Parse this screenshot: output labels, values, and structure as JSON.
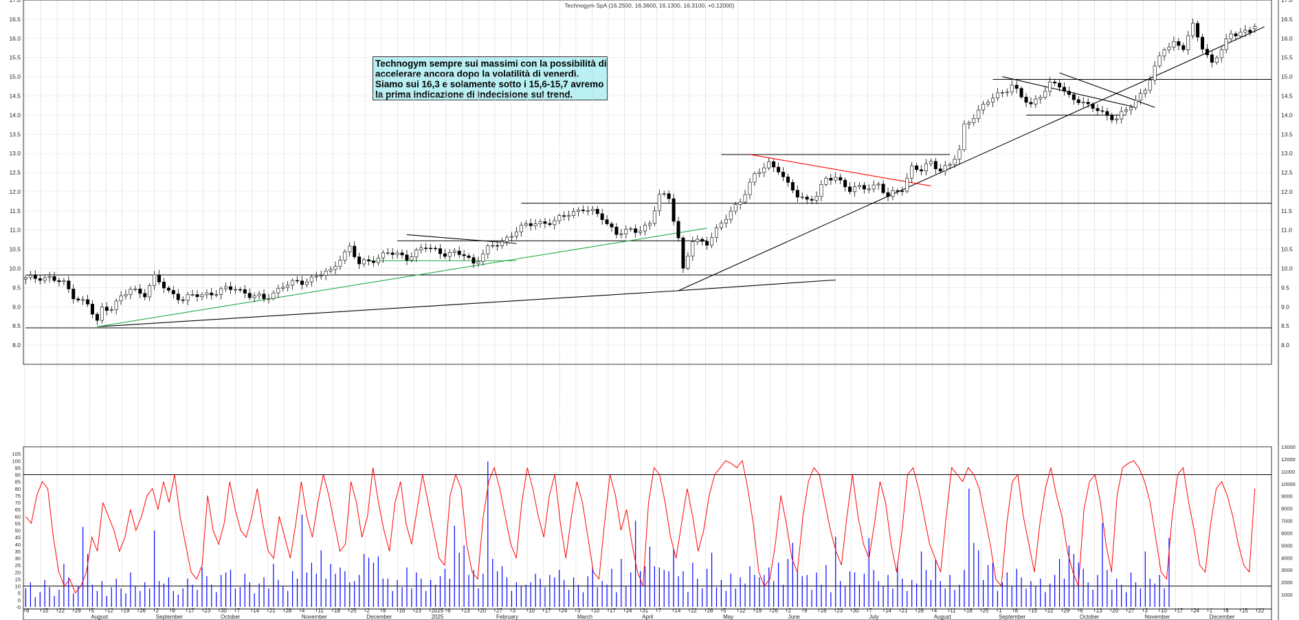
{
  "title": "Technogym SpA (16.2500, 16.3600, 16.1300, 16.3100, +0.12000)",
  "annotation": [
    "Technogym sempre sui massimi con la possibilità di",
    "accelerare ancora dopo la volatilità di venerdì.",
    "Siamo sui 16,3 e solamente sotto i 15,6-15,7 avremo",
    "la prima indicazione di indecisione sul trend."
  ],
  "colors": {
    "candle": "#000000",
    "trend_green": "#22aa44",
    "trend_red": "#ff0000",
    "stoch": "#ff0000",
    "volume": "#0000ff",
    "grid": "#b0b0b0"
  },
  "x_ticks": [
    "8",
    "15",
    "22",
    "29",
    "5",
    "12",
    "19",
    "26",
    "2",
    "9",
    "17",
    "23",
    "30",
    "7",
    "14",
    "21",
    "28",
    "4",
    "11",
    "18",
    "25",
    "2",
    "9",
    "16",
    "23",
    "2025",
    "6",
    "13",
    "20",
    "27",
    "3",
    "10",
    "17",
    "24",
    "3",
    "10",
    "17",
    "24",
    "31",
    "7",
    "14",
    "22",
    "28",
    "5",
    "12",
    "19",
    "26",
    "2",
    "9",
    "16",
    "23",
    "30",
    "7",
    "14",
    "21",
    "28",
    "4",
    "11",
    "18",
    "25",
    "1",
    "8",
    "15",
    "22",
    "29",
    "6",
    "13",
    "20",
    "27",
    "3",
    "10",
    "17",
    "24",
    "1",
    "8",
    "15",
    "22"
  ],
  "month_labels": [
    "August",
    "September",
    "October",
    "November",
    "December",
    "2025",
    "February",
    "March",
    "April",
    "May",
    "June",
    "July",
    "August",
    "September",
    "October",
    "November",
    "December"
  ],
  "chart_data": [
    {
      "type": "candlestick",
      "title": "Technogym SpA (16.2500, 16.3600, 16.1300, 16.3100, +0.12000)",
      "last": {
        "open": 16.25,
        "high": 16.36,
        "low": 16.13,
        "close": 16.31,
        "change": 0.12
      },
      "ylim": [
        7.5,
        17.0
      ],
      "y_ticks": [
        8.0,
        8.5,
        9.0,
        9.5,
        10.0,
        10.5,
        11.0,
        11.5,
        12.0,
        12.5,
        13.0,
        13.5,
        14.0,
        14.5,
        15.0,
        15.5,
        16.0,
        16.5,
        17.0
      ],
      "grid": true,
      "close_path": [
        [
          0,
          9.72
        ],
        [
          3,
          9.78
        ],
        [
          5,
          9.75
        ],
        [
          8,
          9.6
        ],
        [
          10,
          9.3
        ],
        [
          13,
          9.05
        ],
        [
          15,
          8.6
        ],
        [
          16,
          8.95
        ],
        [
          18,
          9.0
        ],
        [
          22,
          9.45
        ],
        [
          25,
          9.35
        ],
        [
          27,
          9.75
        ],
        [
          30,
          9.4
        ],
        [
          33,
          9.2
        ],
        [
          36,
          9.3
        ],
        [
          40,
          9.38
        ],
        [
          44,
          9.5
        ],
        [
          47,
          9.3
        ],
        [
          50,
          9.2
        ],
        [
          54,
          9.55
        ],
        [
          58,
          9.65
        ],
        [
          62,
          9.85
        ],
        [
          64,
          9.9
        ],
        [
          66,
          10.3
        ],
        [
          68,
          10.55
        ],
        [
          70,
          10.1
        ],
        [
          72,
          10.2
        ],
        [
          76,
          10.4
        ],
        [
          80,
          10.3
        ],
        [
          84,
          10.55
        ],
        [
          88,
          10.4
        ],
        [
          92,
          10.35
        ],
        [
          94,
          10.15
        ],
        [
          97,
          10.5
        ],
        [
          100,
          10.7
        ],
        [
          103,
          11.0
        ],
        [
          107,
          11.2
        ],
        [
          111,
          11.2
        ],
        [
          114,
          11.45
        ],
        [
          117,
          11.55
        ],
        [
          121,
          11.35
        ],
        [
          124,
          10.9
        ],
        [
          128,
          11.0
        ],
        [
          131,
          11.15
        ],
        [
          133,
          11.9
        ],
        [
          135,
          11.85
        ],
        [
          137,
          10.8
        ],
        [
          138,
          9.95
        ],
        [
          140,
          10.7
        ],
        [
          143,
          10.7
        ],
        [
          147,
          11.3
        ],
        [
          150,
          11.8
        ],
        [
          153,
          12.4
        ],
        [
          156,
          12.75
        ],
        [
          158,
          12.6
        ],
        [
          160,
          12.15
        ],
        [
          162,
          11.9
        ],
        [
          164,
          11.8
        ],
        [
          166,
          11.9
        ],
        [
          168,
          12.3
        ],
        [
          170,
          12.4
        ],
        [
          173,
          12.05
        ],
        [
          176,
          12.1
        ],
        [
          179,
          12.2
        ],
        [
          181,
          11.85
        ],
        [
          184,
          12.1
        ],
        [
          186,
          12.65
        ],
        [
          188,
          12.55
        ],
        [
          190,
          12.75
        ],
        [
          192,
          12.6
        ],
        [
          194,
          12.7
        ],
        [
          196,
          13.05
        ],
        [
          197,
          13.7
        ],
        [
          199,
          14.0
        ],
        [
          202,
          14.35
        ],
        [
          205,
          14.6
        ],
        [
          207,
          14.8
        ],
        [
          209,
          14.45
        ],
        [
          211,
          14.25
        ],
        [
          213,
          14.55
        ],
        [
          215,
          14.8
        ],
        [
          217,
          14.75
        ],
        [
          219,
          14.5
        ],
        [
          221,
          14.4
        ],
        [
          223,
          14.2
        ],
        [
          225,
          14.15
        ],
        [
          227,
          14.0
        ],
        [
          229,
          13.9
        ],
        [
          231,
          14.1
        ],
        [
          233,
          14.4
        ],
        [
          235,
          14.7
        ],
        [
          237,
          15.2
        ],
        [
          239,
          15.75
        ],
        [
          241,
          15.9
        ],
        [
          243,
          15.75
        ],
        [
          245,
          16.3
        ],
        [
          247,
          15.8
        ],
        [
          249,
          15.35
        ],
        [
          251,
          15.7
        ],
        [
          253,
          16.1
        ],
        [
          255,
          16.2
        ],
        [
          257,
          16.15
        ],
        [
          258,
          16.31
        ]
      ],
      "horizontal_levels": [
        {
          "y": 9.83,
          "x_from": 0,
          "x_to": 260
        },
        {
          "y": 8.45,
          "x_from": 0,
          "x_to": 260
        },
        {
          "y": 11.7,
          "x_from": 104,
          "x_to": 260
        },
        {
          "y": 10.72,
          "x_from": 78,
          "x_to": 143
        },
        {
          "y": 12.97,
          "x_from": 146,
          "x_to": 194
        },
        {
          "y": 14.93,
          "x_from": 203,
          "x_to": 260
        },
        {
          "y": 14.0,
          "x_from": 210,
          "x_to": 231
        }
      ],
      "trendlines": [
        {
          "color": "black",
          "from": [
            15,
            8.48
          ],
          "to": [
            137,
            9.42
          ]
        },
        {
          "color": "black",
          "from": [
            137,
            9.42
          ],
          "to": [
            170,
            9.7
          ]
        },
        {
          "color": "black",
          "from": [
            137,
            9.42
          ],
          "to": [
            260,
            16.3
          ]
        },
        {
          "color": "green",
          "from": [
            15,
            8.48
          ],
          "to": [
            143,
            11.05
          ]
        },
        {
          "color": "green",
          "from": [
            72,
            10.2
          ],
          "to": [
            103,
            10.2
          ]
        },
        {
          "color": "black",
          "from": [
            80,
            10.88
          ],
          "to": [
            103,
            10.65
          ]
        },
        {
          "color": "red",
          "from": [
            152,
            12.97
          ],
          "to": [
            190,
            12.15
          ]
        },
        {
          "color": "black",
          "from": [
            205,
            15.0
          ],
          "to": [
            233,
            14.2
          ]
        },
        {
          "color": "black",
          "from": [
            217,
            15.1
          ],
          "to": [
            237,
            14.2
          ]
        }
      ]
    },
    {
      "type": "line",
      "name": "stochastic",
      "ylim": [
        -5,
        110
      ],
      "y_ticks": [
        -5,
        0,
        5,
        10,
        15,
        20,
        25,
        30,
        35,
        40,
        45,
        50,
        55,
        60,
        65,
        70,
        75,
        80,
        85,
        90,
        95,
        100,
        105
      ],
      "levels": [
        90,
        10
      ],
      "series": [
        {
          "values": [
            60,
            55,
            75,
            85,
            80,
            45,
            20,
            10,
            15,
            5,
            10,
            20,
            45,
            35,
            70,
            60,
            50,
            35,
            45,
            65,
            50,
            60,
            75,
            80,
            65,
            85,
            70,
            90,
            60,
            40,
            20,
            15,
            25,
            75,
            50,
            40,
            55,
            85,
            65,
            50,
            45,
            60,
            80,
            55,
            35,
            30,
            60,
            45,
            30,
            55,
            85,
            60,
            45,
            70,
            90,
            75,
            55,
            35,
            40,
            85,
            70,
            45,
            60,
            95,
            70,
            50,
            35,
            70,
            85,
            55,
            40,
            65,
            90,
            70,
            50,
            30,
            25,
            75,
            90,
            80,
            40,
            20,
            15,
            60,
            85,
            95,
            80,
            60,
            40,
            30,
            70,
            95,
            80,
            60,
            45,
            75,
            90,
            55,
            30,
            60,
            85,
            70,
            45,
            20,
            15,
            55,
            90,
            75,
            50,
            65,
            40,
            20,
            10,
            70,
            95,
            90,
            70,
            45,
            30,
            55,
            80,
            60,
            35,
            50,
            75,
            90,
            95,
            100,
            98,
            95,
            100,
            80,
            55,
            20,
            10,
            15,
            40,
            75,
            55,
            30,
            20,
            60,
            85,
            95,
            90,
            70,
            50,
            35,
            25,
            60,
            90,
            60,
            40,
            30,
            55,
            85,
            70,
            40,
            20,
            50,
            90,
            95,
            80,
            60,
            40,
            30,
            20,
            60,
            95,
            90,
            85,
            95,
            90,
            80,
            60,
            40,
            15,
            10,
            55,
            85,
            90,
            60,
            40,
            20,
            55,
            80,
            95,
            75,
            60,
            35,
            20,
            10,
            65,
            85,
            90,
            70,
            40,
            20,
            75,
            95,
            98,
            100,
            95,
            85,
            70,
            45,
            20,
            15,
            60,
            90,
            95,
            70,
            50,
            25,
            20,
            55,
            80,
            85,
            75,
            60,
            40,
            25,
            20,
            80
          ]
        }
      ]
    },
    {
      "type": "bar",
      "name": "volume",
      "ylim": [
        0,
        13000
      ],
      "y_ticks": [
        1000,
        2000,
        3000,
        4000,
        5000,
        6000,
        7000,
        8000,
        9000,
        10000,
        11000,
        12000,
        13000
      ],
      "values": [
        1500,
        2000,
        800,
        1200,
        2200,
        1600,
        900,
        1400,
        3500,
        2400,
        1100,
        1700,
        6500,
        4300,
        1800,
        1300,
        2100,
        900,
        1600,
        2300,
        1500,
        1100,
        2800,
        1700,
        1300,
        2000,
        1500,
        6200,
        2100,
        1900,
        2400,
        1300,
        1000,
        1500,
        2300,
        1800,
        1400,
        3200,
        2500,
        1800,
        1200,
        2600,
        2800,
        3000,
        1500,
        1600,
        2700,
        2000,
        1100,
        1900,
        2400,
        1500,
        3500,
        2200,
        1700,
        1300,
        2900,
        2300,
        7500,
        2800,
        3600,
        2700,
        4600,
        2300,
        3500,
        2700,
        3200,
        2900,
        2000,
        2100,
        2600,
        4300,
        4000,
        3600,
        4100,
        2300,
        2300,
        1300,
        2200,
        1600,
        3200,
        1500,
        2800,
        2300,
        1300,
        2200,
        1800,
        2500,
        3100,
        2300,
        6600,
        4400,
        5000,
        2600,
        3000,
        1500,
        2700,
        11800,
        3900,
        2900,
        3300,
        2400,
        1300,
        2000,
        1700,
        1800,
        2000,
        2700,
        2300,
        1600,
        2600,
        2400,
        3000,
        2200,
        1400,
        2400,
        1800,
        1200,
        2500,
        3200,
        1600,
        2100,
        1800,
        3100,
        1200,
        3900,
        1700,
        2800,
        7000,
        2900,
        3300,
        4900,
        3300,
        3200,
        3000,
        2900,
        4700,
        2500,
        2900,
        1200,
        3600,
        2300,
        1500,
        3100,
        4400,
        1600,
        2200,
        1300,
        2700,
        1500,
        2400,
        1900,
        3300,
        2600,
        2400,
        2600,
        3200,
        2100,
        3600,
        1800,
        3900,
        5200,
        2900,
        2500,
        2600,
        1400,
        2800,
        1800,
        3400,
        1200,
        5700,
        2100,
        1700,
        2900,
        2800,
        1800,
        2700,
        5600,
        3000,
        2100,
        1700,
        2600,
        1500,
        3600,
        2300,
        1300,
        2200,
        1900,
        4500,
        3000,
        2200,
        3800,
        2100,
        1500,
        2600,
        1400,
        1800,
        3000,
        9600,
        5200,
        4600,
        2200,
        3400,
        3600,
        1300,
        2000,
        2800,
        1700,
        3100,
        2400,
        1500,
        2100,
        1700,
        2300,
        1200,
        1900,
        2600,
        3900,
        2300,
        5000,
        4300,
        3600,
        3100,
        2000,
        1400,
        2600,
        6800,
        3000,
        1400,
        2300,
        1800,
        1200,
        2800,
        2000,
        1500,
        4500,
        2300,
        1900,
        2600,
        1500,
        5600
      ]
    }
  ]
}
